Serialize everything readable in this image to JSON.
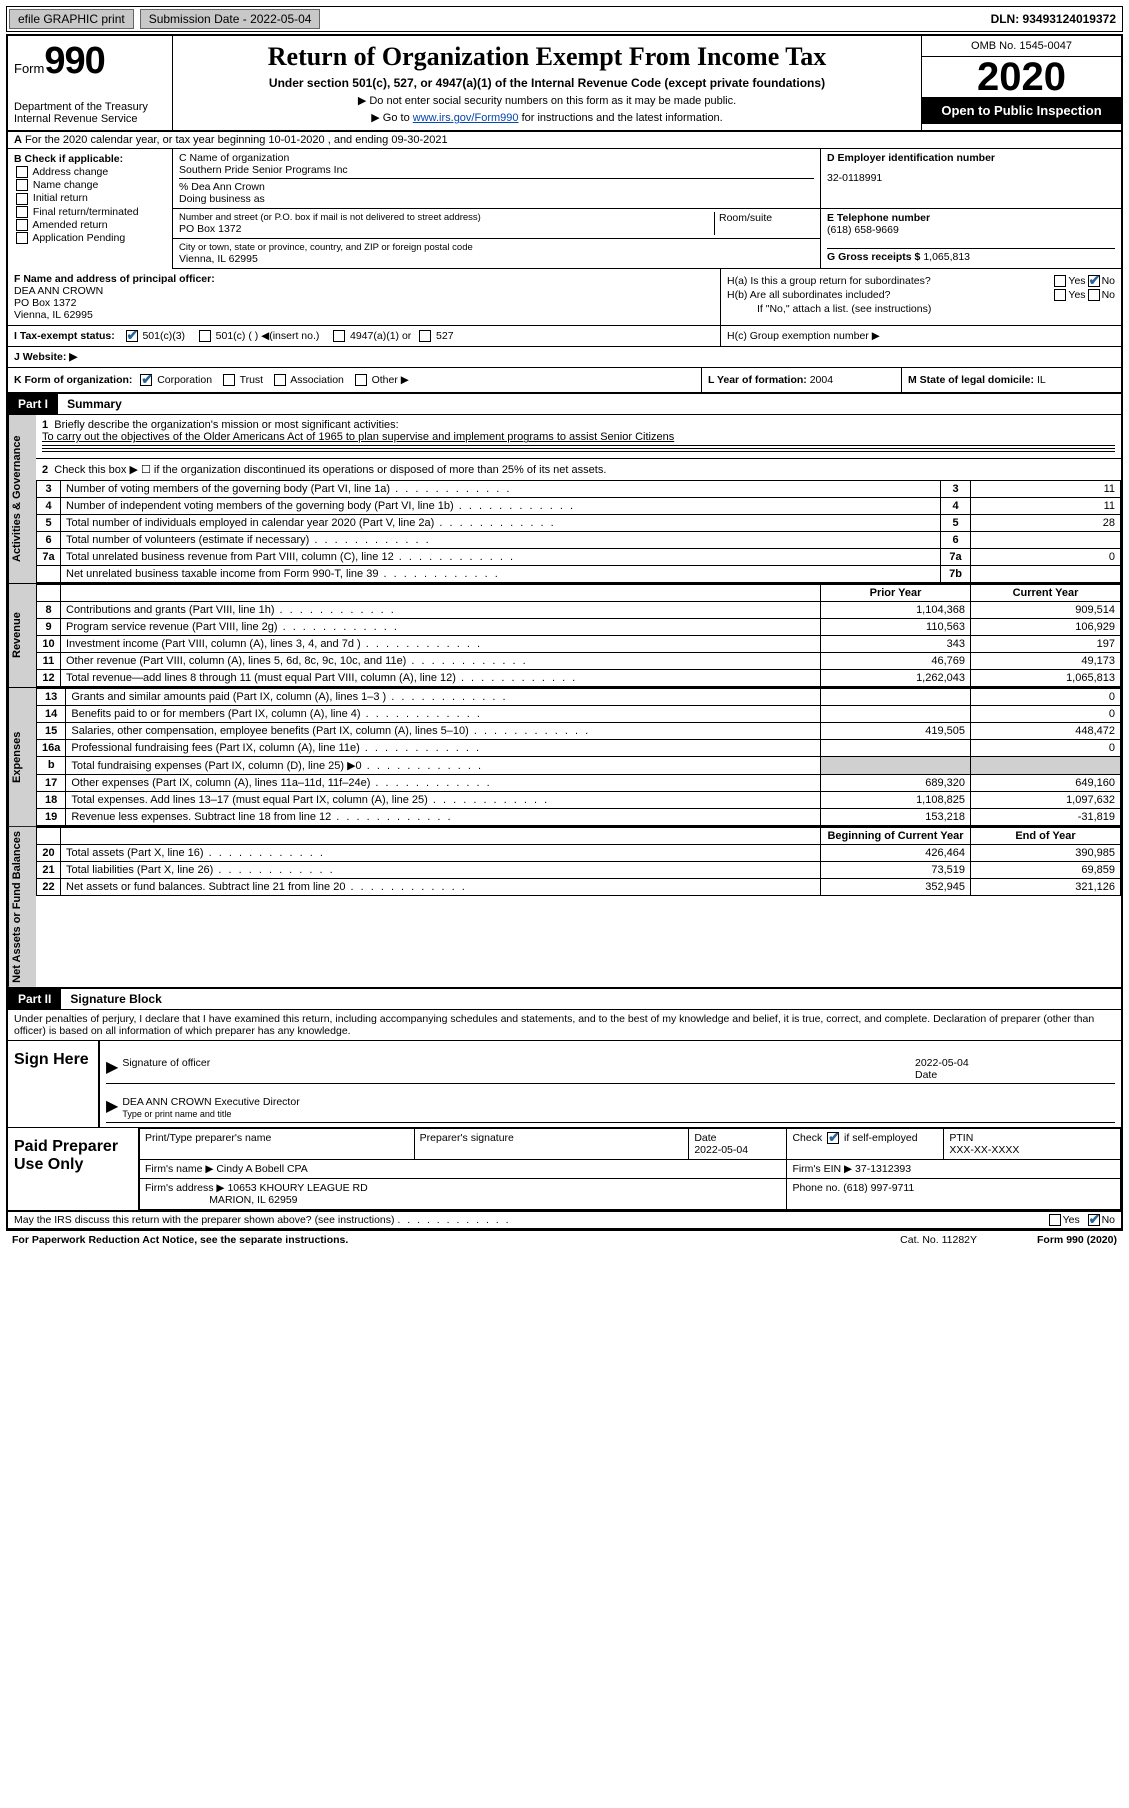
{
  "topbar": {
    "efile": "efile GRAPHIC print",
    "submission_label": "Submission Date - 2022-05-04",
    "dln": "DLN: 93493124019372"
  },
  "header": {
    "form_label": "Form",
    "form_no": "990",
    "dept": "Department of the Treasury",
    "irs": "Internal Revenue Service",
    "title": "Return of Organization Exempt From Income Tax",
    "sub": "Under section 501(c), 527, or 4947(a)(1) of the Internal Revenue Code (except private foundations)",
    "note1": "▶ Do not enter social security numbers on this form as it may be made public.",
    "note2a": "▶ Go to ",
    "note2link": "www.irs.gov/Form990",
    "note2b": " for instructions and the latest information.",
    "omb": "OMB No. 1545-0047",
    "year": "2020",
    "inspect": "Open to Public Inspection"
  },
  "rowA": "For the 2020 calendar year, or tax year beginning 10-01-2020    , and ending 09-30-2021",
  "B": {
    "head": "B Check if applicable:",
    "addr": "Address change",
    "name": "Name change",
    "init": "Initial return",
    "final": "Final return/terminated",
    "amend": "Amended return",
    "app": "Application Pending"
  },
  "C": {
    "lbl": "C Name of organization",
    "org": "Southern Pride Senior Programs Inc",
    "care": "% Dea Ann Crown",
    "dba_lbl": "Doing business as",
    "street_lbl": "Number and street (or P.O. box if mail is not delivered to street address)",
    "room_lbl": "Room/suite",
    "street": "PO Box 1372",
    "city_lbl": "City or town, state or province, country, and ZIP or foreign postal code",
    "city": "Vienna, IL  62995"
  },
  "D": {
    "lbl": "D Employer identification number",
    "val": "32-0118991"
  },
  "E": {
    "lbl": "E Telephone number",
    "val": "(618) 658-9669"
  },
  "G": {
    "lbl": "G Gross receipts $",
    "val": "1,065,813"
  },
  "F": {
    "lbl": "F  Name and address of principal officer:",
    "name": "DEA ANN CROWN",
    "addr1": "PO Box 1372",
    "addr2": "Vienna, IL  62995"
  },
  "H": {
    "a": "H(a)  Is this a group return for subordinates?",
    "b": "H(b)  Are all subordinates included?",
    "bnote": "If \"No,\" attach a list. (see instructions)",
    "c": "H(c)  Group exemption number ▶"
  },
  "I": {
    "lbl": "I    Tax-exempt status:",
    "o1": "501(c)(3)",
    "o2": "501(c) (  ) ◀(insert no.)",
    "o3": "4947(a)(1) or",
    "o4": "527"
  },
  "J": "J   Website: ▶",
  "K": "K Form of organization:",
  "Kopts": {
    "corp": "Corporation",
    "trust": "Trust",
    "assoc": "Association",
    "other": "Other ▶"
  },
  "L": {
    "lbl": "L Year of formation:",
    "val": "2004"
  },
  "M": {
    "lbl": "M State of legal domicile:",
    "val": "IL"
  },
  "part1": {
    "hdr": "Part I",
    "title": "Summary"
  },
  "summary": {
    "q1": "Briefly describe the organization's mission or most significant activities:",
    "mission": "To carry out the objectives of the Older Americans Act of 1965 to plan supervise and implement programs to assist Senior Citizens",
    "q2": "Check this box ▶ ☐  if the organization discontinued its operations or disposed of more than 25% of its net assets.",
    "rows_gov": [
      {
        "n": "3",
        "t": "Number of voting members of the governing body (Part VI, line 1a)",
        "rn": "3",
        "v": "11"
      },
      {
        "n": "4",
        "t": "Number of independent voting members of the governing body (Part VI, line 1b)",
        "rn": "4",
        "v": "11"
      },
      {
        "n": "5",
        "t": "Total number of individuals employed in calendar year 2020 (Part V, line 2a)",
        "rn": "5",
        "v": "28"
      },
      {
        "n": "6",
        "t": "Total number of volunteers (estimate if necessary)",
        "rn": "6",
        "v": ""
      },
      {
        "n": "7a",
        "t": "Total unrelated business revenue from Part VIII, column (C), line 12",
        "rn": "7a",
        "v": "0"
      },
      {
        "n": "",
        "t": "Net unrelated business taxable income from Form 990-T, line 39",
        "rn": "7b",
        "v": ""
      }
    ],
    "py": "Prior Year",
    "cy": "Current Year",
    "rows_rev": [
      {
        "n": "8",
        "t": "Contributions and grants (Part VIII, line 1h)",
        "p": "1,104,368",
        "c": "909,514"
      },
      {
        "n": "9",
        "t": "Program service revenue (Part VIII, line 2g)",
        "p": "110,563",
        "c": "106,929"
      },
      {
        "n": "10",
        "t": "Investment income (Part VIII, column (A), lines 3, 4, and 7d )",
        "p": "343",
        "c": "197"
      },
      {
        "n": "11",
        "t": "Other revenue (Part VIII, column (A), lines 5, 6d, 8c, 9c, 10c, and 11e)",
        "p": "46,769",
        "c": "49,173"
      },
      {
        "n": "12",
        "t": "Total revenue—add lines 8 through 11 (must equal Part VIII, column (A), line 12)",
        "p": "1,262,043",
        "c": "1,065,813"
      }
    ],
    "rows_exp": [
      {
        "n": "13",
        "t": "Grants and similar amounts paid (Part IX, column (A), lines 1–3 )",
        "p": "",
        "c": "0"
      },
      {
        "n": "14",
        "t": "Benefits paid to or for members (Part IX, column (A), line 4)",
        "p": "",
        "c": "0"
      },
      {
        "n": "15",
        "t": "Salaries, other compensation, employee benefits (Part IX, column (A), lines 5–10)",
        "p": "419,505",
        "c": "448,472"
      },
      {
        "n": "16a",
        "t": "Professional fundraising fees (Part IX, column (A), line 11e)",
        "p": "",
        "c": "0"
      },
      {
        "n": "b",
        "t": "Total fundraising expenses (Part IX, column (D), line 25) ▶0",
        "p": "GRAY",
        "c": "GRAY"
      },
      {
        "n": "17",
        "t": "Other expenses (Part IX, column (A), lines 11a–11d, 11f–24e)",
        "p": "689,320",
        "c": "649,160"
      },
      {
        "n": "18",
        "t": "Total expenses. Add lines 13–17 (must equal Part IX, column (A), line 25)",
        "p": "1,108,825",
        "c": "1,097,632"
      },
      {
        "n": "19",
        "t": "Revenue less expenses. Subtract line 18 from line 12",
        "p": "153,218",
        "c": "-31,819"
      }
    ],
    "bcy": "Beginning of Current Year",
    "eoy": "End of Year",
    "rows_net": [
      {
        "n": "20",
        "t": "Total assets (Part X, line 16)",
        "p": "426,464",
        "c": "390,985"
      },
      {
        "n": "21",
        "t": "Total liabilities (Part X, line 26)",
        "p": "73,519",
        "c": "69,859"
      },
      {
        "n": "22",
        "t": "Net assets or fund balances. Subtract line 21 from line 20",
        "p": "352,945",
        "c": "321,126"
      }
    ],
    "vlab_gov": "Activities & Governance",
    "vlab_rev": "Revenue",
    "vlab_exp": "Expenses",
    "vlab_net": "Net Assets or Fund Balances"
  },
  "part2": {
    "hdr": "Part II",
    "title": "Signature Block"
  },
  "penalties": "Under penalties of perjury, I declare that I have examined this return, including accompanying schedules and statements, and to the best of my knowledge and belief, it is true, correct, and complete. Declaration of preparer (other than officer) is based on all information of which preparer has any knowledge.",
  "sign": {
    "here": "Sign Here",
    "sig_officer": "Signature of officer",
    "date_lbl": "Date",
    "date": "2022-05-04",
    "name": "DEA ANN CROWN  Executive Director",
    "type_lbl": "Type or print name and title"
  },
  "prep": {
    "title": "Paid Preparer Use Only",
    "c1": "Print/Type preparer's name",
    "c2": "Preparer's signature",
    "c3": "Date",
    "c3v": "2022-05-04",
    "c4a": "Check",
    "c4b": "if self-employed",
    "c5": "PTIN",
    "c5v": "XXX-XX-XXXX",
    "firm_lbl": "Firm's name    ▶",
    "firm": "Cindy A Bobell CPA",
    "ein_lbl": "Firm's EIN ▶",
    "ein": "37-1312393",
    "addr_lbl": "Firm's address ▶",
    "addr1": "10653 KHOURY LEAGUE RD",
    "addr2": "MARION, IL  62959",
    "phone_lbl": "Phone no.",
    "phone": "(618) 997-9711"
  },
  "discuss": "May the IRS discuss this return with the preparer shown above? (see instructions)",
  "pwork": "For Paperwork Reduction Act Notice, see the separate instructions.",
  "cat": "Cat. No. 11282Y",
  "formfoot": "Form 990 (2020)",
  "yes": "Yes",
  "no": "No",
  "b_label": "b"
}
